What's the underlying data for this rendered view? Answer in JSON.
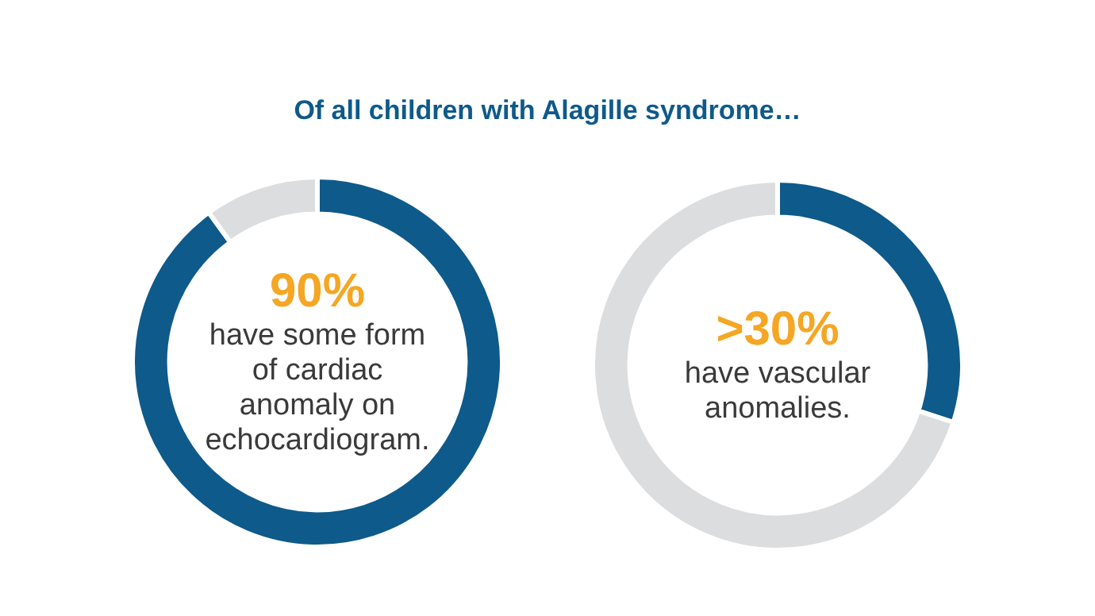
{
  "chart_data": [
    {
      "type": "donut",
      "title": "Of all children with Alagille syndrome…",
      "categories": [
        null,
        null
      ],
      "values": [
        90,
        10
      ],
      "colors": [
        "#0e5a8a",
        "#dcdddf"
      ],
      "value_labels": [
        "90%",
        null
      ],
      "annotations": [
        "have some form of cardiac anomaly on echocardiogram."
      ]
    },
    {
      "type": "donut",
      "categories": [
        null,
        null
      ],
      "values": [
        30,
        70
      ],
      "colors": [
        "#0e5a8a",
        "#dcdddf"
      ],
      "value_labels": [
        ">30%",
        null
      ],
      "annotations": [
        "have vascular anomalies."
      ]
    }
  ]
}
